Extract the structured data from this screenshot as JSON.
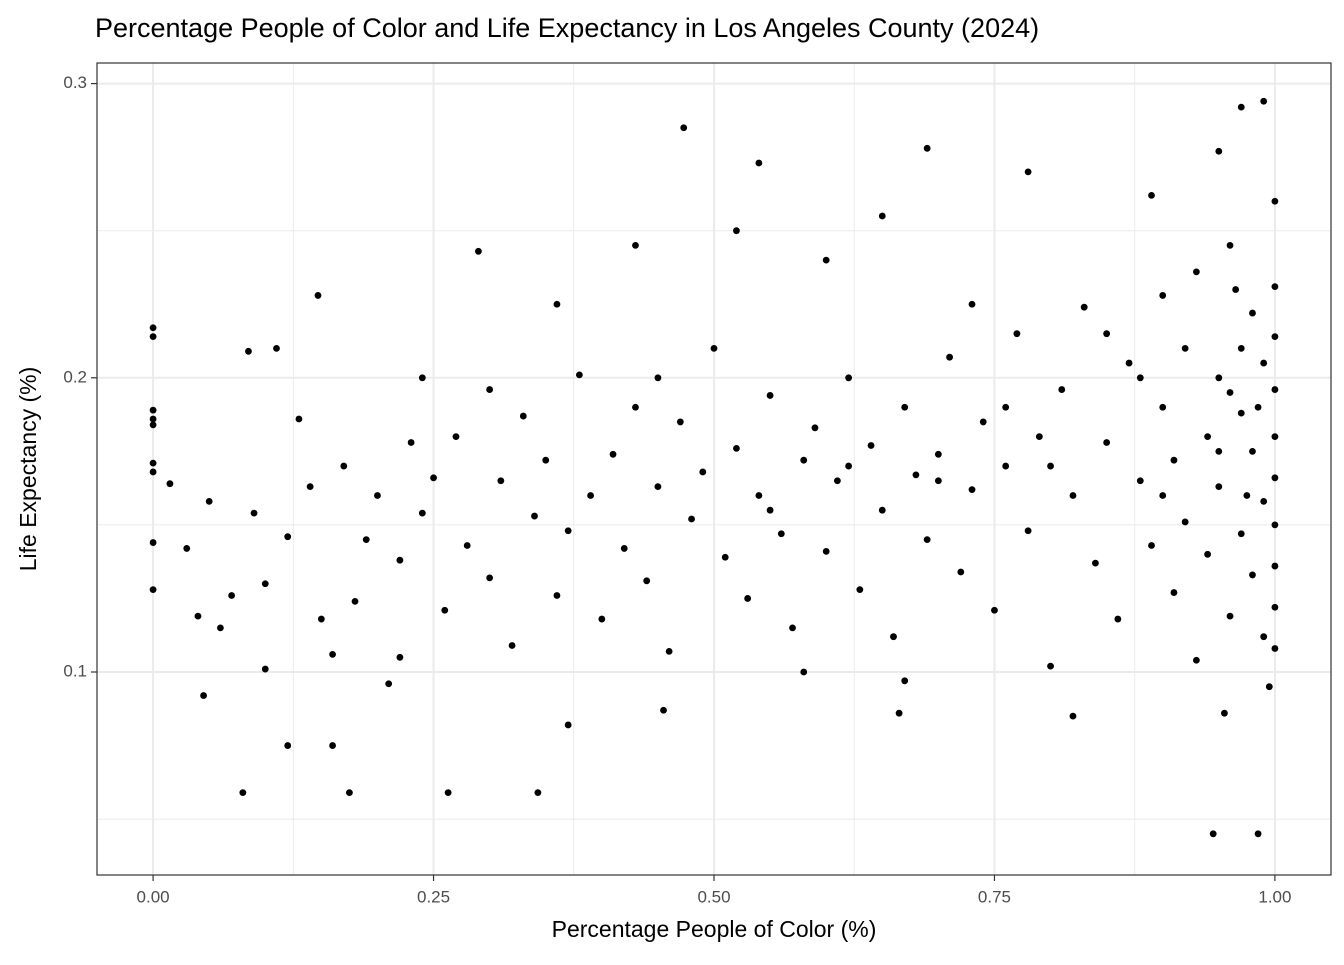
{
  "chart_data": {
    "type": "scatter",
    "title": "Percentage People of Color and Life Expectancy in Los Angeles County (2024)",
    "x_label": "Percentage People of Color (%)",
    "y_label": "Life Expectancy (%)",
    "color": "#000000",
    "grid": true,
    "minor_grid": true,
    "xlim": [
      -0.05,
      1.05
    ],
    "ylim": [
      0.031,
      0.307
    ],
    "xticks": [
      {
        "value": 0,
        "label": "0.00"
      },
      {
        "value": 0.25,
        "label": "0.25"
      },
      {
        "value": 0.5,
        "label": "0.50"
      },
      {
        "value": 0.75,
        "label": "0.75"
      },
      {
        "value": 1,
        "label": "1.00"
      }
    ],
    "yticks": [
      0.1,
      0.2,
      0.3
    ],
    "x": [
      0,
      0,
      0,
      0,
      0,
      0,
      0,
      0,
      0,
      0.08,
      0.175,
      0.263,
      0.343,
      0.945,
      0.985,
      0.473,
      0.54,
      0.69,
      0.97,
      0.99,
      0.95,
      0.147,
      0.12,
      0.16,
      0.045,
      0.29,
      0.43,
      0.665,
      0.455,
      0.82,
      0.995,
      0.955,
      0.085,
      0.11,
      0.015,
      0.03,
      0.04,
      0.06,
      0.07,
      0.09,
      0.1,
      0.1,
      0.12,
      0.13,
      0.14,
      0.15,
      0.16,
      0.17,
      0.18,
      0.19,
      0.2,
      0.21,
      0.22,
      0.23,
      0.24,
      0.25,
      0.26,
      0.27,
      0.28,
      0.3,
      0.3,
      0.31,
      0.32,
      0.33,
      0.34,
      0.35,
      0.36,
      0.37,
      0.38,
      0.39,
      0.4,
      0.41,
      0.42,
      0.43,
      0.44,
      0.45,
      0.46,
      0.47,
      0.48,
      0.49,
      0.5,
      0.51,
      0.52,
      0.53,
      0.54,
      0.55,
      0.56,
      0.57,
      0.58,
      0.59,
      0.6,
      0.61,
      0.62,
      0.63,
      0.64,
      0.65,
      0.66,
      0.67,
      0.68,
      0.69,
      0.7,
      0.71,
      0.72,
      0.73,
      0.74,
      0.75,
      0.76,
      0.77,
      0.78,
      0.79,
      0.8,
      0.81,
      0.82,
      0.83,
      0.84,
      0.85,
      0.86,
      0.87,
      0.88,
      0.89,
      0.9,
      0.9,
      0.91,
      0.91,
      0.92,
      0.92,
      0.93,
      0.93,
      0.94,
      0.94,
      0.95,
      0.95,
      0.96,
      0.96,
      0.97,
      0.97,
      0.98,
      0.98,
      0.98,
      0.99,
      0.99,
      0.99,
      1,
      1,
      1,
      1,
      1,
      1,
      1,
      1,
      1,
      1,
      0.97,
      0.96,
      0.95,
      0.985,
      0.975,
      0.965,
      0.9,
      0.88,
      0.85,
      0.8,
      0.76,
      0.73,
      0.65,
      0.6,
      0.52,
      0.45,
      0.36,
      0.24,
      0.22,
      0.05,
      0.67,
      0.58,
      0.37,
      0.78,
      0.89,
      0.7,
      0.62,
      0.55
    ],
    "values": [
      0.217,
      0.214,
      0.189,
      0.186,
      0.184,
      0.171,
      0.168,
      0.144,
      0.128,
      0.059,
      0.059,
      0.059,
      0.059,
      0.045,
      0.045,
      0.285,
      0.273,
      0.278,
      0.292,
      0.294,
      0.277,
      0.228,
      0.075,
      0.075,
      0.092,
      0.243,
      0.245,
      0.086,
      0.087,
      0.085,
      0.095,
      0.086,
      0.209,
      0.21,
      0.164,
      0.142,
      0.119,
      0.115,
      0.126,
      0.154,
      0.101,
      0.13,
      0.146,
      0.186,
      0.163,
      0.118,
      0.106,
      0.17,
      0.124,
      0.145,
      0.16,
      0.096,
      0.138,
      0.178,
      0.154,
      0.166,
      0.121,
      0.18,
      0.143,
      0.196,
      0.132,
      0.165,
      0.109,
      0.187,
      0.153,
      0.172,
      0.126,
      0.148,
      0.201,
      0.16,
      0.118,
      0.174,
      0.142,
      0.19,
      0.131,
      0.163,
      0.107,
      0.185,
      0.152,
      0.168,
      0.21,
      0.139,
      0.176,
      0.125,
      0.16,
      0.194,
      0.147,
      0.115,
      0.172,
      0.183,
      0.141,
      0.165,
      0.2,
      0.128,
      0.177,
      0.155,
      0.112,
      0.19,
      0.167,
      0.145,
      0.174,
      0.207,
      0.134,
      0.162,
      0.185,
      0.121,
      0.17,
      0.215,
      0.148,
      0.18,
      0.102,
      0.196,
      0.16,
      0.224,
      0.137,
      0.178,
      0.118,
      0.205,
      0.165,
      0.143,
      0.228,
      0.19,
      0.127,
      0.172,
      0.21,
      0.151,
      0.104,
      0.236,
      0.18,
      0.14,
      0.2,
      0.163,
      0.119,
      0.245,
      0.188,
      0.147,
      0.222,
      0.175,
      0.133,
      0.205,
      0.158,
      0.112,
      0.26,
      0.231,
      0.214,
      0.196,
      0.18,
      0.166,
      0.15,
      0.136,
      0.122,
      0.108,
      0.21,
      0.195,
      0.175,
      0.19,
      0.16,
      0.23,
      0.16,
      0.2,
      0.215,
      0.17,
      0.19,
      0.225,
      0.255,
      0.24,
      0.25,
      0.2,
      0.225,
      0.2,
      0.105,
      0.158,
      0.097,
      0.1,
      0.082,
      0.27,
      0.262,
      0.165,
      0.17,
      0.155
    ]
  }
}
